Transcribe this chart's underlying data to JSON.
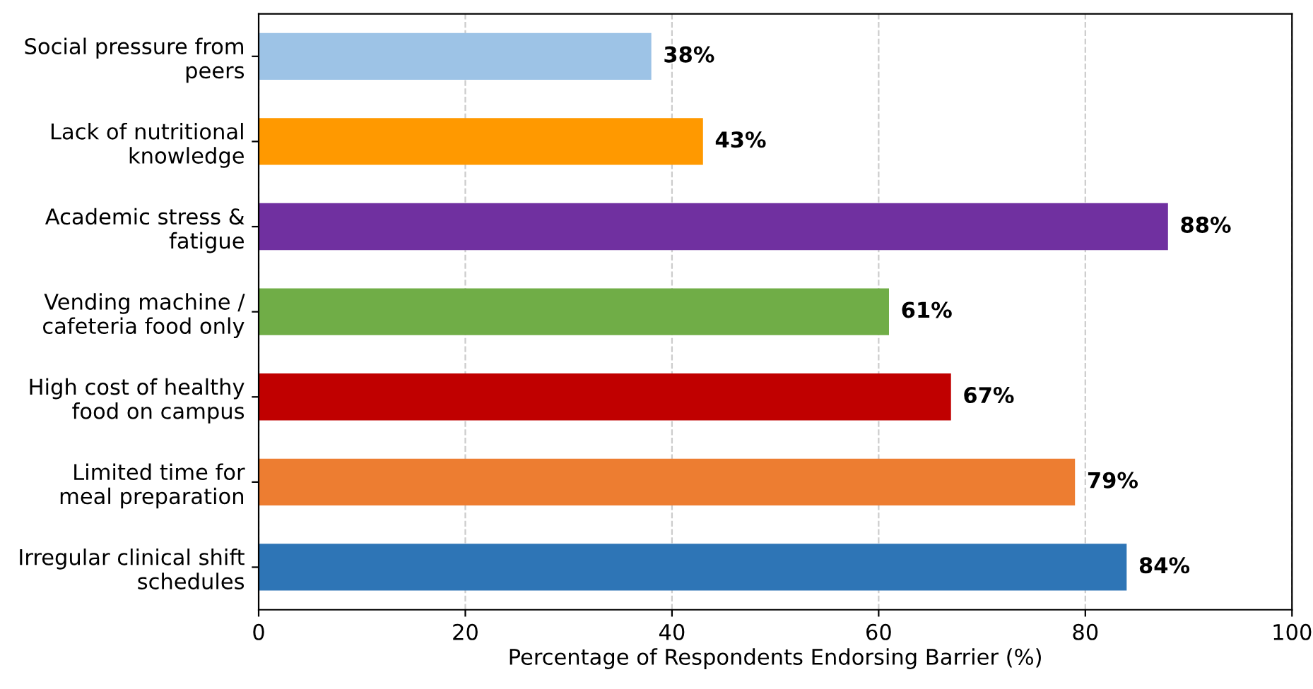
{
  "chart_data": {
    "type": "bar",
    "orientation": "horizontal",
    "xlabel": "Percentage of Respondents Endorsing Barrier (%)",
    "categories": [
      "Social pressure from\npeers",
      "Lack of nutritional\nknowledge",
      "Academic stress &\nfatigue",
      "Vending machine /\ncafeteria food only",
      "High cost of healthy\nfood on campus",
      "Limited time for\nmeal preparation",
      "Irregular clinical shift\nschedules"
    ],
    "values": [
      38,
      43,
      88,
      61,
      67,
      79,
      84
    ],
    "value_labels": [
      "38%",
      "43%",
      "88%",
      "61%",
      "67%",
      "79%",
      "84%"
    ],
    "colors": [
      "#9dc3e6",
      "#ff9900",
      "#7030a0",
      "#70ad47",
      "#c00000",
      "#ed7d31",
      "#2e75b6"
    ],
    "xlim": [
      0,
      100
    ],
    "xticks": [
      0,
      20,
      40,
      60,
      80,
      100
    ],
    "grid": "x",
    "legend": false
  }
}
